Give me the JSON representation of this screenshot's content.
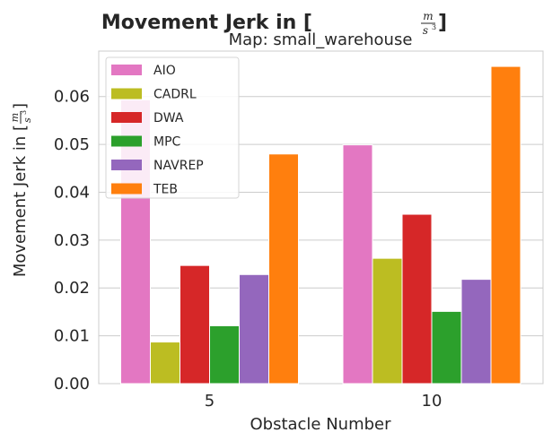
{
  "chart_data": {
    "type": "bar",
    "title_main": "Movement Jerk in [",
    "title_frac_num": "m",
    "title_frac_den": "s",
    "title_frac_exp": "3",
    "title_close": "]",
    "subtitle": "Map: small_warehouse",
    "xlabel": "Obstacle Number",
    "ylabel_main": "Movement Jerk in [",
    "ylim": [
      0,
      0.0695
    ],
    "yticks": [
      "0.00",
      "0.01",
      "0.02",
      "0.03",
      "0.04",
      "0.05",
      "0.06"
    ],
    "ytick_values": [
      0,
      0.01,
      0.02,
      0.03,
      0.04,
      0.05,
      0.06
    ],
    "categories": [
      "5",
      "10"
    ],
    "grid": true,
    "legend_position": "top-left",
    "series": [
      {
        "name": "AIO",
        "color": "#e377c2",
        "values": [
          0.0593,
          0.0499
        ]
      },
      {
        "name": "CADRL",
        "color": "#bcbd22",
        "values": [
          0.0087,
          0.0262
        ]
      },
      {
        "name": "DWA",
        "color": "#d62728",
        "values": [
          0.0247,
          0.0354
        ]
      },
      {
        "name": "MPC",
        "color": "#2ca02c",
        "values": [
          0.0121,
          0.0151
        ]
      },
      {
        "name": "NAVREP",
        "color": "#9467bd",
        "values": [
          0.0228,
          0.0218
        ]
      },
      {
        "name": "TEB",
        "color": "#ff7f0e",
        "values": [
          0.048,
          0.0663
        ]
      }
    ]
  }
}
